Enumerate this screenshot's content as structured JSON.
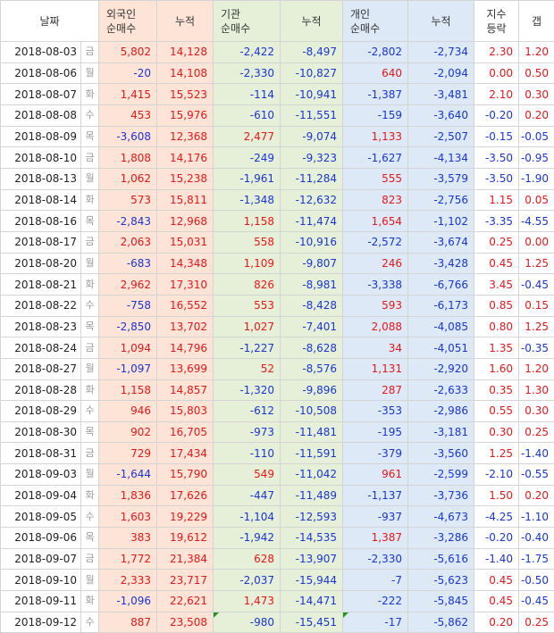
{
  "headers": {
    "date": "날짜",
    "foreign_net": "외국인\n순매수",
    "foreign_cum": "누적",
    "inst_net": "기관\n순매수",
    "inst_cum": "누적",
    "indiv_net": "개인\n순매수",
    "indiv_cum": "누적",
    "index_change": "지수\n등락",
    "gap": "갭"
  },
  "rows": [
    {
      "date": "2018-08-03",
      "dow": "금",
      "fn": "5,802",
      "fc": "14,128",
      "in": "-2,422",
      "ic": "-8,497",
      "pn": "-2,802",
      "pc": "-2,734",
      "idx": "2.30",
      "gap": "1.20"
    },
    {
      "date": "2018-08-06",
      "dow": "월",
      "fn": "-20",
      "fc": "14,108",
      "in": "-2,330",
      "ic": "-10,827",
      "pn": "640",
      "pc": "-2,094",
      "idx": "0.00",
      "gap": "0.50"
    },
    {
      "date": "2018-08-07",
      "dow": "화",
      "fn": "1,415",
      "fc": "15,523",
      "in": "-114",
      "ic": "-10,941",
      "pn": "-1,387",
      "pc": "-3,481",
      "idx": "2.10",
      "gap": "0.30"
    },
    {
      "date": "2018-08-08",
      "dow": "수",
      "fn": "453",
      "fc": "15,976",
      "in": "-610",
      "ic": "-11,551",
      "pn": "-159",
      "pc": "-3,640",
      "idx": "-0.20",
      "gap": "0.20"
    },
    {
      "date": "2018-08-09",
      "dow": "목",
      "fn": "-3,608",
      "fc": "12,368",
      "in": "2,477",
      "ic": "-9,074",
      "pn": "1,133",
      "pc": "-2,507",
      "idx": "-0.15",
      "gap": "-0.05"
    },
    {
      "date": "2018-08-10",
      "dow": "금",
      "fn": "1,808",
      "fc": "14,176",
      "in": "-249",
      "ic": "-9,323",
      "pn": "-1,627",
      "pc": "-4,134",
      "idx": "-3.50",
      "gap": "-0.95"
    },
    {
      "date": "2018-08-13",
      "dow": "월",
      "fn": "1,062",
      "fc": "15,238",
      "in": "-1,961",
      "ic": "-11,284",
      "pn": "555",
      "pc": "-3,579",
      "idx": "-3.50",
      "gap": "-1.90"
    },
    {
      "date": "2018-08-14",
      "dow": "화",
      "fn": "573",
      "fc": "15,811",
      "in": "-1,348",
      "ic": "-12,632",
      "pn": "823",
      "pc": "-2,756",
      "idx": "1.15",
      "gap": "0.05"
    },
    {
      "date": "2018-08-16",
      "dow": "목",
      "fn": "-2,843",
      "fc": "12,968",
      "in": "1,158",
      "ic": "-11,474",
      "pn": "1,654",
      "pc": "-1,102",
      "idx": "-3.35",
      "gap": "-4.55"
    },
    {
      "date": "2018-08-17",
      "dow": "금",
      "fn": "2,063",
      "fc": "15,031",
      "in": "558",
      "ic": "-10,916",
      "pn": "-2,572",
      "pc": "-3,674",
      "idx": "0.25",
      "gap": "0.00"
    },
    {
      "date": "2018-08-20",
      "dow": "월",
      "fn": "-683",
      "fc": "14,348",
      "in": "1,109",
      "ic": "-9,807",
      "pn": "246",
      "pc": "-3,428",
      "idx": "0.45",
      "gap": "1.25"
    },
    {
      "date": "2018-08-21",
      "dow": "화",
      "fn": "2,962",
      "fc": "17,310",
      "in": "826",
      "ic": "-8,981",
      "pn": "-3,338",
      "pc": "-6,766",
      "idx": "3.45",
      "gap": "-0.45"
    },
    {
      "date": "2018-08-22",
      "dow": "수",
      "fn": "-758",
      "fc": "16,552",
      "in": "553",
      "ic": "-8,428",
      "pn": "593",
      "pc": "-6,173",
      "idx": "0.85",
      "gap": "0.15"
    },
    {
      "date": "2018-08-23",
      "dow": "목",
      "fn": "-2,850",
      "fc": "13,702",
      "in": "1,027",
      "ic": "-7,401",
      "pn": "2,088",
      "pc": "-4,085",
      "idx": "0.80",
      "gap": "1.25"
    },
    {
      "date": "2018-08-24",
      "dow": "금",
      "fn": "1,094",
      "fc": "14,796",
      "in": "-1,227",
      "ic": "-8,628",
      "pn": "34",
      "pc": "-4,051",
      "idx": "1.35",
      "gap": "-0.35"
    },
    {
      "date": "2018-08-27",
      "dow": "월",
      "fn": "-1,097",
      "fc": "13,699",
      "in": "52",
      "ic": "-8,576",
      "pn": "1,131",
      "pc": "-2,920",
      "idx": "1.60",
      "gap": "1.20"
    },
    {
      "date": "2018-08-28",
      "dow": "화",
      "fn": "1,158",
      "fc": "14,857",
      "in": "-1,320",
      "ic": "-9,896",
      "pn": "287",
      "pc": "-2,633",
      "idx": "0.35",
      "gap": "1.30"
    },
    {
      "date": "2018-08-29",
      "dow": "수",
      "fn": "946",
      "fc": "15,803",
      "in": "-612",
      "ic": "-10,508",
      "pn": "-353",
      "pc": "-2,986",
      "idx": "0.55",
      "gap": "0.30"
    },
    {
      "date": "2018-08-30",
      "dow": "목",
      "fn": "902",
      "fc": "16,705",
      "in": "-973",
      "ic": "-11,481",
      "pn": "-195",
      "pc": "-3,181",
      "idx": "0.30",
      "gap": "0.25"
    },
    {
      "date": "2018-08-31",
      "dow": "금",
      "fn": "729",
      "fc": "17,434",
      "in": "-110",
      "ic": "-11,591",
      "pn": "-379",
      "pc": "-3,560",
      "idx": "1.25",
      "gap": "-1.40"
    },
    {
      "date": "2018-09-03",
      "dow": "월",
      "fn": "-1,644",
      "fc": "15,790",
      "in": "549",
      "ic": "-11,042",
      "pn": "961",
      "pc": "-2,599",
      "idx": "-2.10",
      "gap": "-0.55"
    },
    {
      "date": "2018-09-04",
      "dow": "화",
      "fn": "1,836",
      "fc": "17,626",
      "in": "-447",
      "ic": "-11,489",
      "pn": "-1,137",
      "pc": "-3,736",
      "idx": "1.50",
      "gap": "0.20"
    },
    {
      "date": "2018-09-05",
      "dow": "수",
      "fn": "1,603",
      "fc": "19,229",
      "in": "-1,104",
      "ic": "-12,593",
      "pn": "-937",
      "pc": "-4,673",
      "idx": "-4.25",
      "gap": "-1.10"
    },
    {
      "date": "2018-09-06",
      "dow": "목",
      "fn": "383",
      "fc": "19,612",
      "in": "-1,942",
      "ic": "-14,535",
      "pn": "1,387",
      "pc": "-3,286",
      "idx": "-0.20",
      "gap": "-0.40"
    },
    {
      "date": "2018-09-07",
      "dow": "금",
      "fn": "1,772",
      "fc": "21,384",
      "in": "628",
      "ic": "-13,907",
      "pn": "-2,330",
      "pc": "-5,616",
      "idx": "-1.40",
      "gap": "-1.75"
    },
    {
      "date": "2018-09-10",
      "dow": "월",
      "fn": "2,333",
      "fc": "23,717",
      "in": "-2,037",
      "ic": "-15,944",
      "pn": "-7",
      "pc": "-5,623",
      "idx": "0.45",
      "gap": "-0.50"
    },
    {
      "date": "2018-09-11",
      "dow": "화",
      "fn": "-1,096",
      "fc": "22,621",
      "in": "1,473",
      "ic": "-14,471",
      "pn": "-222",
      "pc": "-5,845",
      "idx": "0.45",
      "gap": "-0.45"
    },
    {
      "date": "2018-09-12",
      "dow": "수",
      "fn": "887",
      "fc": "23,508",
      "in": "-980",
      "ic": "-15,451",
      "pn": "-17",
      "pc": "-5,862",
      "idx": "0.20",
      "gap": "0.25"
    }
  ],
  "colors": {
    "positive": "#e6171a",
    "negative": "#1a35d4",
    "foreign_bg": "#fde4d7",
    "institution_bg": "#e6f0d9",
    "individual_bg": "#dde9f6"
  }
}
